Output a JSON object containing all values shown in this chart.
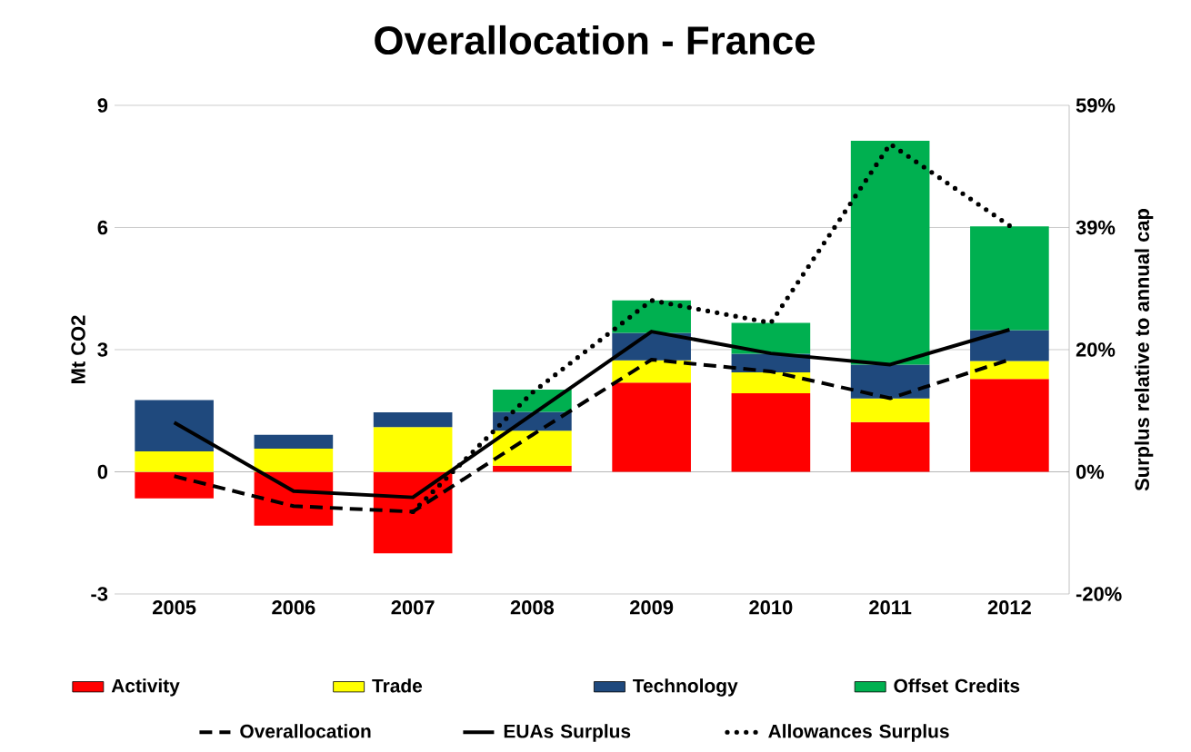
{
  "chart_data": {
    "type": "bar",
    "title": "Overallocation - France",
    "ylabel": "Mt CO2",
    "y2label": "Surplus relative to annual cap",
    "categories": [
      "2005",
      "2006",
      "2007",
      "2008",
      "2009",
      "2010",
      "2011",
      "2012"
    ],
    "stacked": true,
    "grid": "y",
    "legend": "bottom",
    "ylim": [
      -3,
      9
    ],
    "yticks": [
      -3,
      0,
      3,
      6,
      9
    ],
    "y2lim": [
      -19.6,
      58.8
    ],
    "y2ticks": [
      {
        "value": -19.6,
        "label": "-20%"
      },
      {
        "value": 0,
        "label": "0%"
      },
      {
        "value": 19.6,
        "label": "20%"
      },
      {
        "value": 39.2,
        "label": "39%"
      },
      {
        "value": 58.8,
        "label": "59%"
      }
    ],
    "series": [
      {
        "name": "Activity",
        "color": "#ff0000",
        "values": [
          -0.65,
          -1.32,
          -2.0,
          0.15,
          2.19,
          1.93,
          1.22,
          2.28
        ]
      },
      {
        "name": "Trade",
        "color": "#ffff00",
        "values": [
          0.5,
          0.57,
          1.1,
          0.86,
          0.55,
          0.51,
          0.58,
          0.44
        ]
      },
      {
        "name": "Technology",
        "color": "#1f497d",
        "values": [
          1.26,
          0.34,
          0.36,
          0.46,
          0.67,
          0.46,
          0.83,
          0.76
        ]
      },
      {
        "name": "Offset Credits",
        "color": "#00b050",
        "values": [
          0,
          0,
          0,
          0.55,
          0.8,
          0.76,
          5.5,
          2.55
        ]
      },
      {
        "name": "Overallocation",
        "type": "line",
        "axis": "y2",
        "line_style": "dashed",
        "color": "#000000",
        "values": [
          -0.7,
          -5.5,
          -6.4,
          5.9,
          18.0,
          16.1,
          11.8,
          18.0
        ]
      },
      {
        "name": "EUAs Surplus",
        "type": "line",
        "axis": "y2",
        "line_style": "solid",
        "color": "#000000",
        "values": [
          7.9,
          -3.1,
          -4.1,
          9.2,
          22.5,
          19.0,
          17.2,
          22.8
        ]
      },
      {
        "name": "Allowances Surplus",
        "type": "line",
        "axis": "y2",
        "line_style": "dotted",
        "color": "#000000",
        "values": [
          null,
          null,
          -6.4,
          12.7,
          27.5,
          23.9,
          52.6,
          39.5
        ]
      }
    ]
  }
}
